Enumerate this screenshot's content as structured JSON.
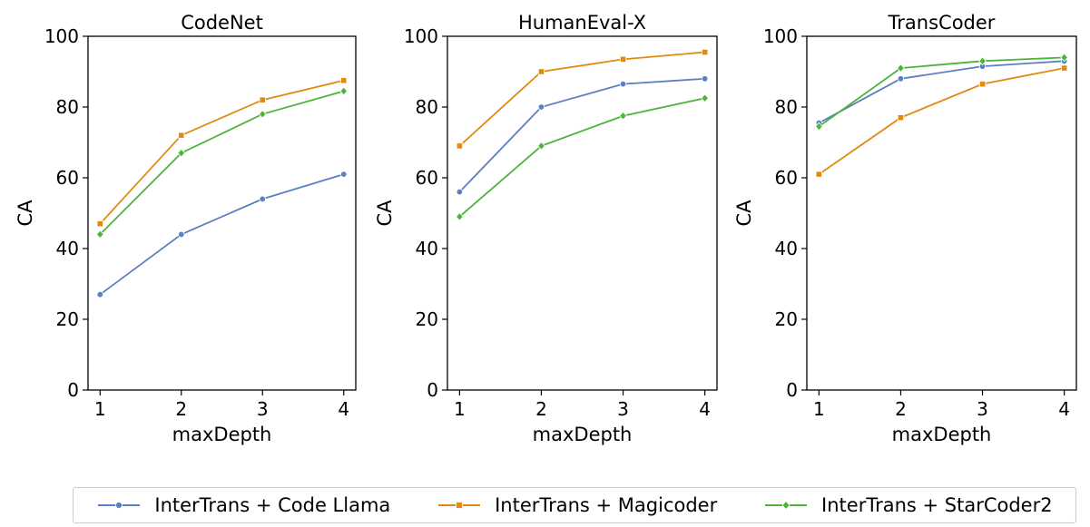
{
  "chart_data": [
    {
      "type": "line",
      "title": "CodeNet",
      "xlabel": "maxDepth",
      "ylabel": "CA",
      "x": [
        1,
        2,
        3,
        4
      ],
      "ylim": [
        0,
        100
      ],
      "yticks": [
        0,
        20,
        40,
        60,
        80,
        100
      ],
      "grid": false,
      "series": [
        {
          "name": "InterTrans + Code Llama",
          "values": [
            27,
            44,
            54,
            61
          ]
        },
        {
          "name": "InterTrans + Magicoder",
          "values": [
            47,
            72,
            82,
            87.5
          ]
        },
        {
          "name": "InterTrans + StarCoder2",
          "values": [
            44,
            67,
            78,
            84.5
          ]
        }
      ]
    },
    {
      "type": "line",
      "title": "HumanEval-X",
      "xlabel": "maxDepth",
      "ylabel": "CA",
      "x": [
        1,
        2,
        3,
        4
      ],
      "ylim": [
        0,
        100
      ],
      "yticks": [
        0,
        20,
        40,
        60,
        80,
        100
      ],
      "grid": false,
      "series": [
        {
          "name": "InterTrans + Code Llama",
          "values": [
            56,
            80,
            86.5,
            88
          ]
        },
        {
          "name": "InterTrans + Magicoder",
          "values": [
            69,
            90,
            93.5,
            95.5
          ]
        },
        {
          "name": "InterTrans + StarCoder2",
          "values": [
            49,
            69,
            77.5,
            82.5
          ]
        }
      ]
    },
    {
      "type": "line",
      "title": "TransCoder",
      "xlabel": "maxDepth",
      "ylabel": "CA",
      "x": [
        1,
        2,
        3,
        4
      ],
      "ylim": [
        0,
        100
      ],
      "yticks": [
        0,
        20,
        40,
        60,
        80,
        100
      ],
      "grid": false,
      "series": [
        {
          "name": "InterTrans + Code Llama",
          "values": [
            75.5,
            88,
            91.5,
            93
          ]
        },
        {
          "name": "InterTrans + Magicoder",
          "values": [
            61,
            77,
            86.5,
            91
          ]
        },
        {
          "name": "InterTrans + StarCoder2",
          "values": [
            74.5,
            91,
            93,
            94
          ]
        }
      ]
    }
  ],
  "legend": {
    "placement": "bottom",
    "items": [
      {
        "label": "InterTrans + Code Llama",
        "color": "#5b7fc0",
        "marker": "circle"
      },
      {
        "label": "InterTrans + Magicoder",
        "color": "#e08a12",
        "marker": "square"
      },
      {
        "label": "InterTrans + StarCoder2",
        "color": "#4cb43a",
        "marker": "diamond"
      }
    ]
  }
}
